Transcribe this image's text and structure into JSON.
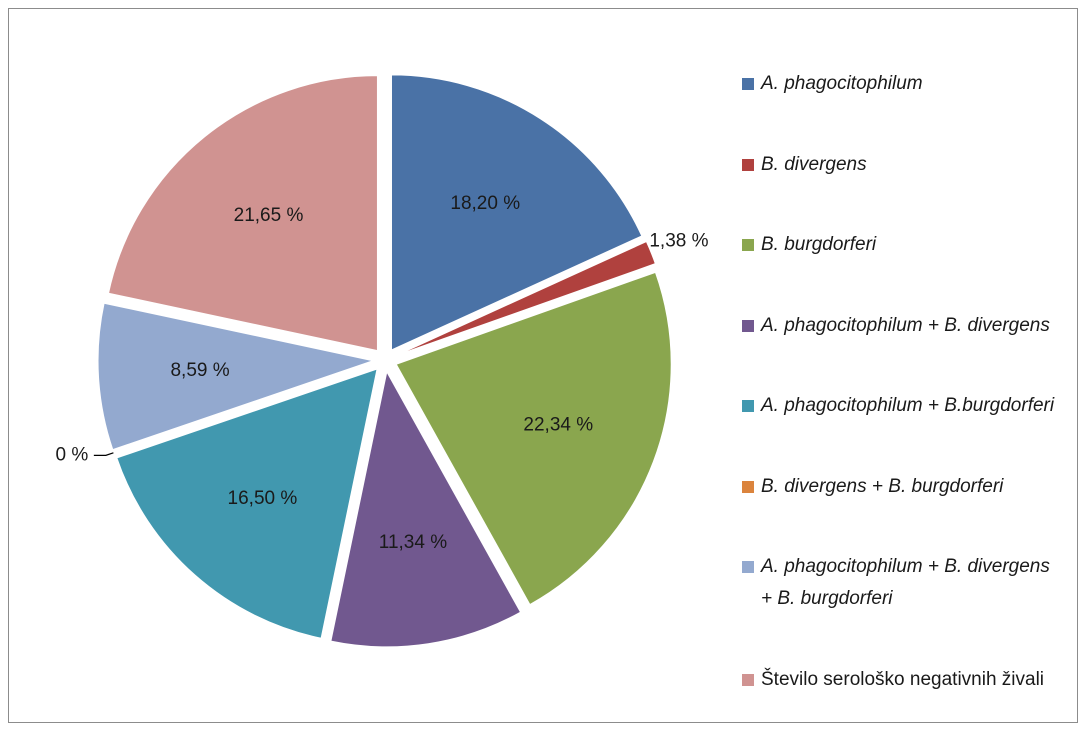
{
  "chart_data": {
    "type": "pie",
    "series": [
      {
        "name": "A. phagocitophilum",
        "color": "#4a72a6",
        "values": [
          18.2
        ],
        "value_labels": [
          "18,20 %"
        ]
      },
      {
        "name": "B. divergens",
        "color": "#b0413e",
        "values": [
          1.38
        ],
        "value_labels": [
          "1,38 %"
        ]
      },
      {
        "name": "B. burgdorferi",
        "color": "#8aa64e",
        "values": [
          22.34
        ],
        "value_labels": [
          "22,34 %"
        ]
      },
      {
        "name": "A. phagocitophilum + B. divergens",
        "color": "#71588f",
        "values": [
          11.34
        ],
        "value_labels": [
          "11,34 %"
        ]
      },
      {
        "name": "A. phagocitophilum + B.burgdorferi",
        "color": "#4198af",
        "values": [
          16.5
        ],
        "value_labels": [
          "16,50 %"
        ]
      },
      {
        "name": "B. divergens + B. burgdorferi",
        "color": "#db843d",
        "values": [
          0
        ],
        "value_labels": [
          "0 %"
        ]
      },
      {
        "name": "A. phagocitophilum + B. divergens + B. burgdorferi",
        "color": "#93a9cf",
        "values": [
          8.59
        ],
        "value_labels": [
          "8,59 %"
        ]
      },
      {
        "name": "Število serološko negativnih živali",
        "color": "#d09391",
        "values": [
          21.65
        ],
        "value_labels": [
          "21,65 %"
        ]
      }
    ]
  }
}
